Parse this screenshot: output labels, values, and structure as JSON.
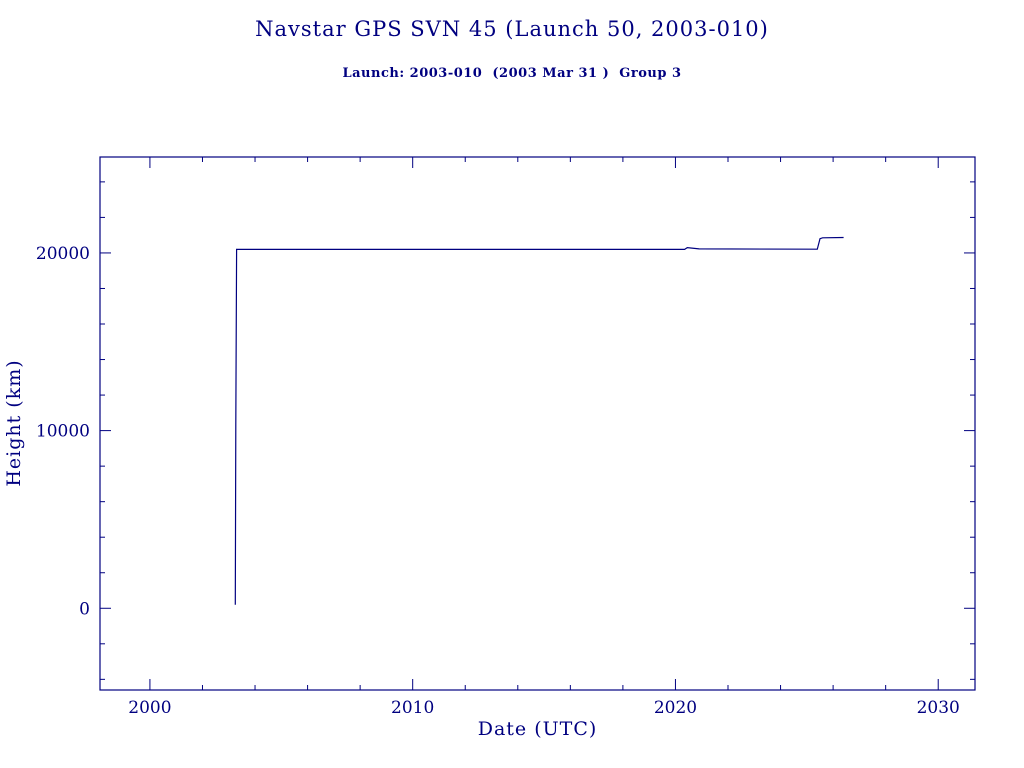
{
  "chart_data": {
    "type": "line",
    "title": "Navstar GPS SVN 45 (Launch 50, 2003-010)",
    "subtitle": "Launch: 2003-010  (2003 Mar 31 )  Group 3",
    "xlabel": "Date (UTC)",
    "ylabel": "Height (km)",
    "xlim": [
      1998.1,
      2031.4
    ],
    "ylim": [
      -4600,
      25400
    ],
    "x_major_ticks": [
      2000,
      2010,
      2020,
      2030
    ],
    "x_minor_step": 2,
    "y_major_ticks": [
      0,
      10000,
      20000
    ],
    "y_minor_step": 2000,
    "grid": false,
    "legend": "none",
    "line_color": "#000080",
    "background_color": "#ffffff",
    "series": [
      {
        "name": "height-km",
        "points": [
          [
            2003.25,
            200
          ],
          [
            2003.27,
            10300
          ],
          [
            2003.3,
            20200
          ],
          [
            2020.35,
            20200
          ],
          [
            2020.45,
            20300
          ],
          [
            2020.9,
            20230
          ],
          [
            2025.4,
            20210
          ],
          [
            2025.5,
            20800
          ],
          [
            2025.6,
            20850
          ],
          [
            2026.4,
            20870
          ]
        ]
      }
    ]
  }
}
